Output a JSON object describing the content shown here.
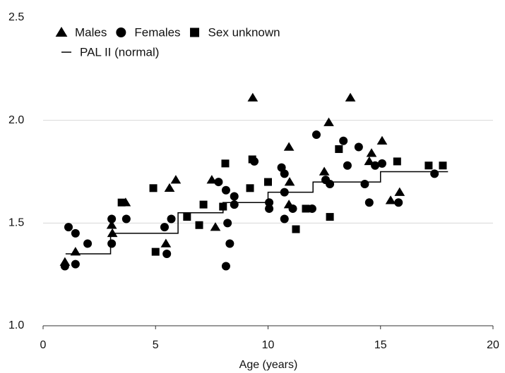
{
  "chart_data": {
    "type": "scatter",
    "x_label": "Age (years)",
    "xlim": [
      0,
      20
    ],
    "xticks": [
      0,
      5,
      10,
      15,
      20
    ],
    "ylim": [
      1.0,
      2.5
    ],
    "yticks": [
      {
        "value": 1.0,
        "label": "1.0"
      },
      {
        "value": 1.5,
        "label": "1.5"
      },
      {
        "value": 2.0,
        "label": "2.0"
      },
      {
        "value": 2.5,
        "label": "2.5"
      }
    ],
    "grid": true,
    "series": [
      {
        "name": "Males",
        "marker": "triangle",
        "color": "#000000",
        "x": [
          0.97,
          1.44,
          3.05,
          3.08,
          3.67,
          5.46,
          5.62,
          5.9,
          7.5,
          7.66,
          9.32,
          10.93,
          10.96,
          10.93,
          12.5,
          12.7,
          13.66,
          14.6,
          15.07,
          14.5,
          15.45,
          15.85
        ],
        "values": [
          1.31,
          1.36,
          1.49,
          1.45,
          1.6,
          1.4,
          1.67,
          1.71,
          1.71,
          1.48,
          2.11,
          1.87,
          1.7,
          1.59,
          1.75,
          1.99,
          2.11,
          1.84,
          1.9,
          1.8,
          1.61,
          1.65
        ]
      },
      {
        "name": "Females",
        "marker": "circle",
        "color": "#000000",
        "x": [
          0.97,
          1.13,
          1.44,
          1.44,
          1.98,
          3.05,
          3.05,
          3.7,
          5.4,
          5.5,
          5.7,
          7.8,
          8.13,
          8.2,
          8.3,
          8.13,
          8.5,
          8.5,
          9.39,
          10.05,
          10.05,
          10.6,
          10.73,
          10.73,
          10.73,
          11.1,
          11.96,
          12.15,
          12.56,
          12.75,
          13.35,
          13.53,
          14.03,
          14.3,
          14.5,
          15.07,
          15.8,
          17.4,
          14.76
        ],
        "values": [
          1.29,
          1.48,
          1.45,
          1.3,
          1.4,
          1.52,
          1.4,
          1.52,
          1.48,
          1.35,
          1.52,
          1.7,
          1.66,
          1.5,
          1.4,
          1.29,
          1.63,
          1.59,
          1.8,
          1.6,
          1.57,
          1.77,
          1.74,
          1.65,
          1.52,
          1.57,
          1.57,
          1.93,
          1.71,
          1.69,
          1.9,
          1.78,
          1.87,
          1.69,
          1.6,
          1.79,
          1.6,
          1.74,
          1.78
        ]
      },
      {
        "name": "Sex unknown",
        "marker": "square",
        "color": "#000000",
        "x": [
          4.9,
          3.49,
          5.0,
          6.4,
          6.94,
          7.13,
          8.1,
          8.0,
          9.3,
          9.2,
          10.0,
          11.24,
          11.68,
          12.75,
          13.15,
          15.74,
          17.14,
          17.77
        ],
        "values": [
          1.67,
          1.6,
          1.36,
          1.53,
          1.49,
          1.59,
          1.79,
          1.58,
          1.81,
          1.67,
          1.7,
          1.47,
          1.57,
          1.53,
          1.86,
          1.8,
          1.78,
          1.78
        ]
      },
      {
        "name": "PAL II (normal)",
        "marker": "line",
        "color": "#000000",
        "x": [
          1,
          3,
          3,
          6,
          6,
          8,
          8,
          10,
          10,
          12,
          12,
          15,
          15,
          18
        ],
        "values": [
          1.35,
          1.35,
          1.45,
          1.45,
          1.55,
          1.55,
          1.6,
          1.6,
          1.65,
          1.65,
          1.7,
          1.7,
          1.75,
          1.75
        ]
      }
    ]
  }
}
